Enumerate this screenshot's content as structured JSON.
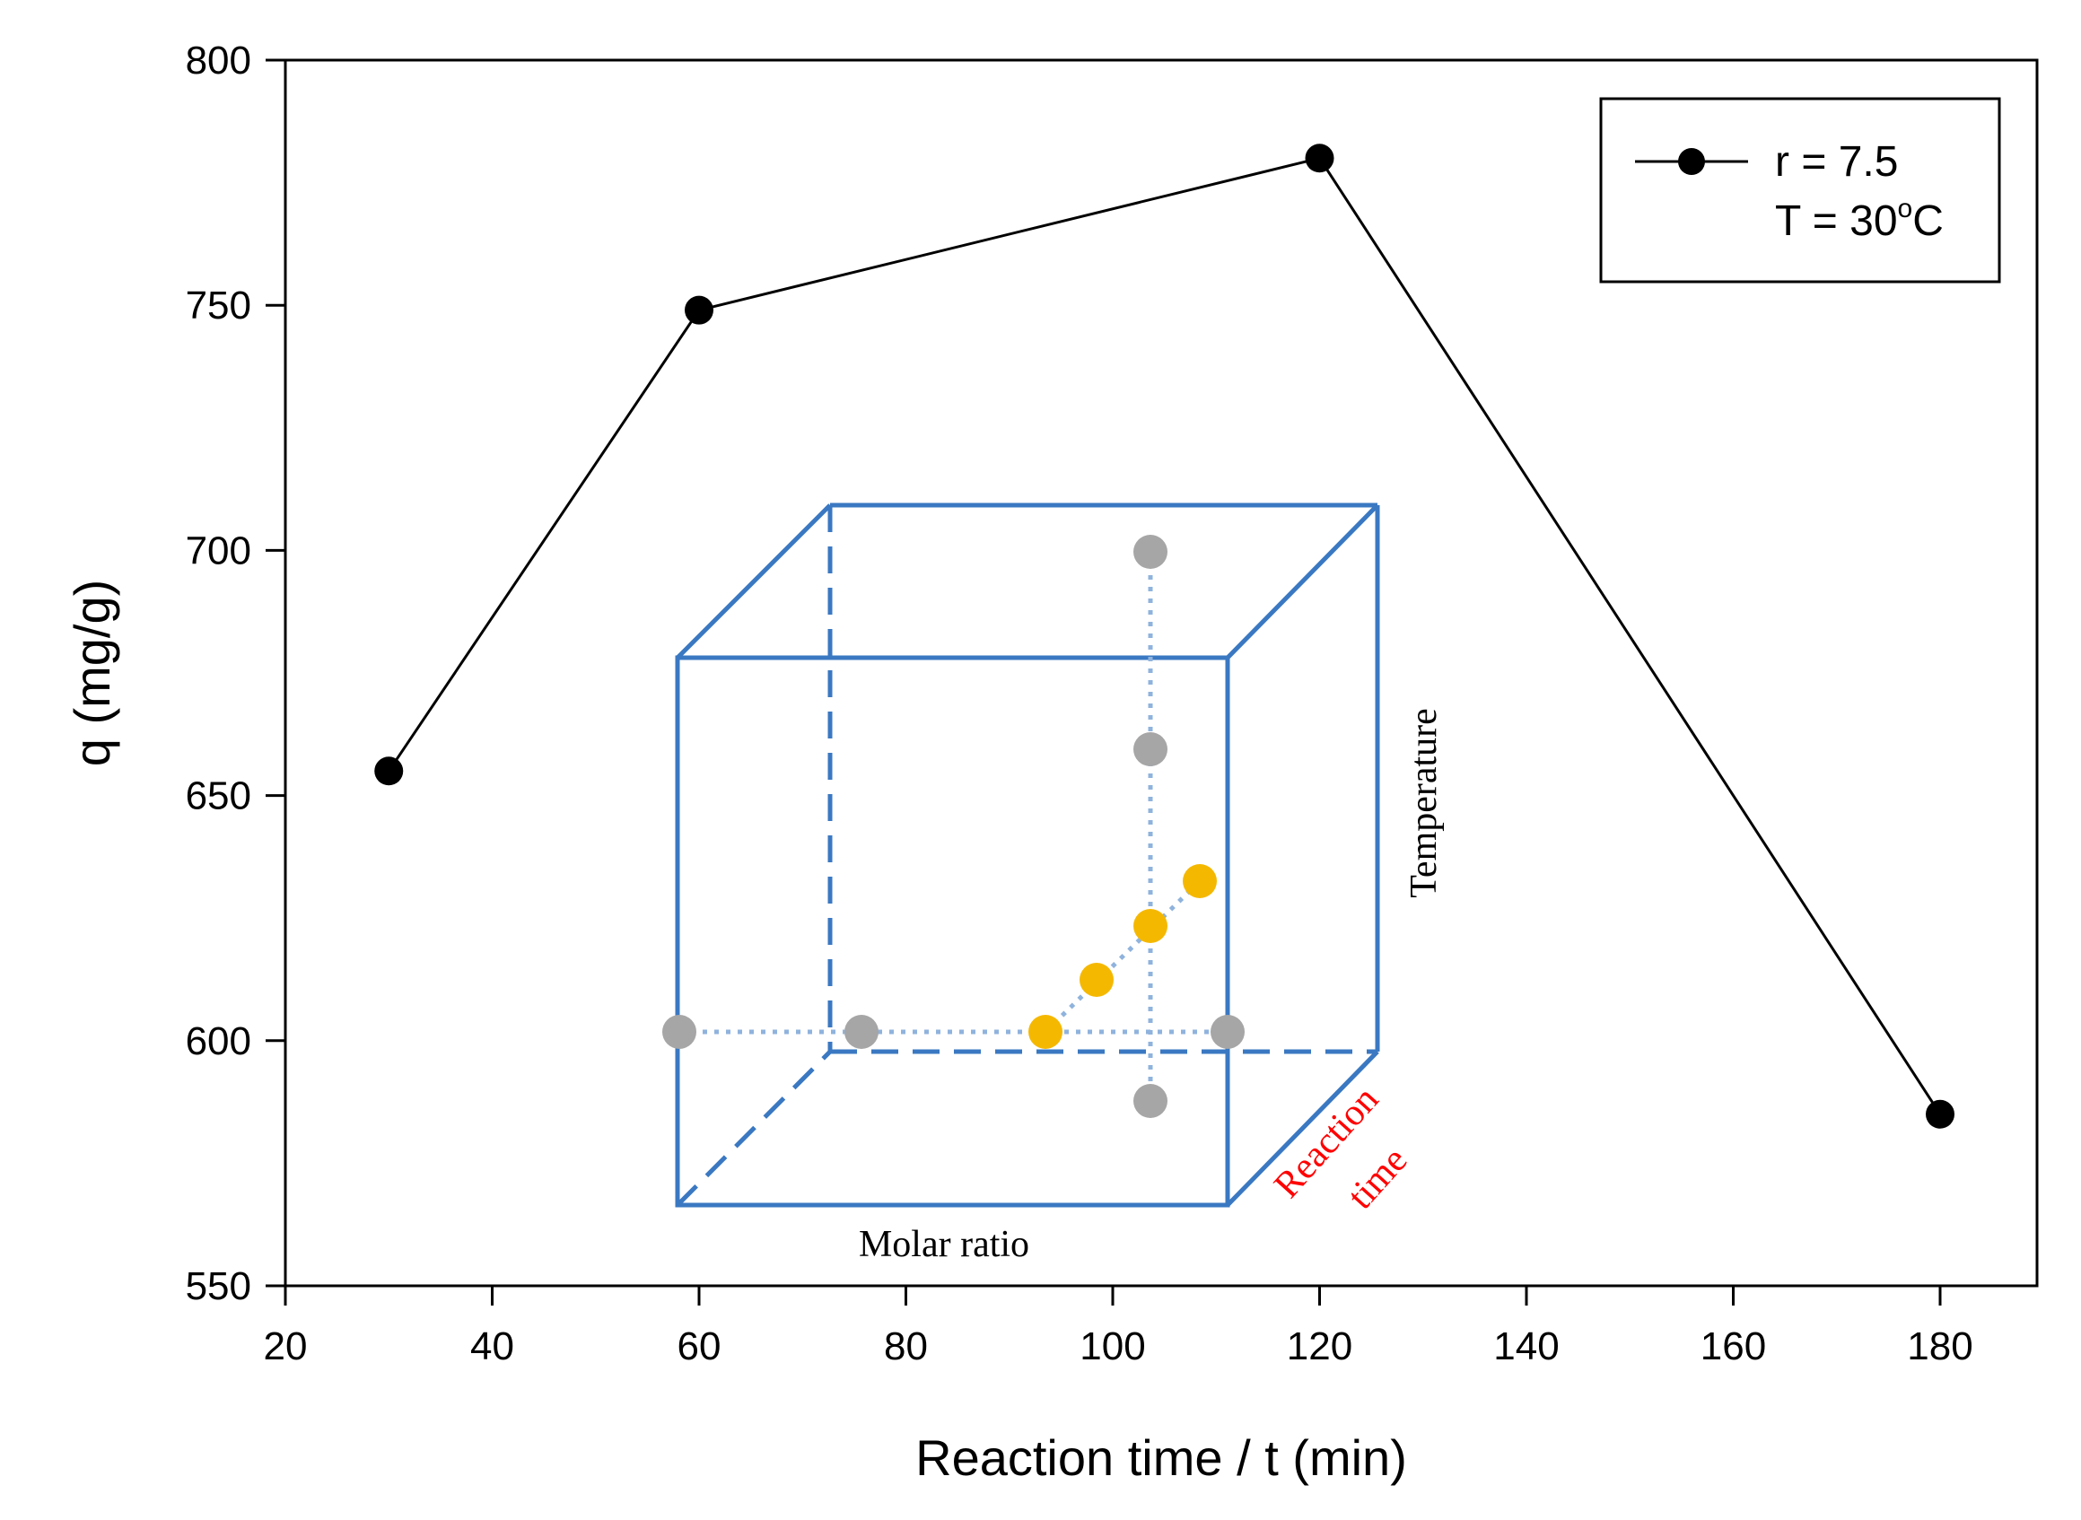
{
  "chart_data": {
    "type": "line",
    "title": "",
    "xlabel": "Reaction time / t (min)",
    "ylabel": "q (mg/g)",
    "xlim": [
      20,
      190
    ],
    "ylim": [
      550,
      800
    ],
    "xticks": [
      20,
      40,
      60,
      80,
      100,
      120,
      140,
      160,
      180
    ],
    "yticks": [
      550,
      600,
      650,
      700,
      750,
      800
    ],
    "grid": false,
    "legend_position": "top-right",
    "series": [
      {
        "name": "r = 7.5",
        "name_line2_prefix": "T = 30",
        "name_line2_sup": "o",
        "name_line2_suffix": "C",
        "marker": "filled-circle",
        "color": "#000000",
        "x": [
          30,
          60,
          120,
          180
        ],
        "y": [
          655,
          749,
          780,
          585
        ]
      }
    ]
  },
  "inset": {
    "description_labels": {
      "molar_ratio": "Molar ratio",
      "temperature": "Temperature",
      "reaction_line1": "Reaction",
      "reaction_line2": "time"
    },
    "colors": {
      "cube": "#3a78c2",
      "dotted": "#8fb3dd",
      "gray_point": "#a6a6a6",
      "yellow_point": "#f5b800",
      "reaction_label": "#ff0000",
      "text": "#000000"
    }
  }
}
